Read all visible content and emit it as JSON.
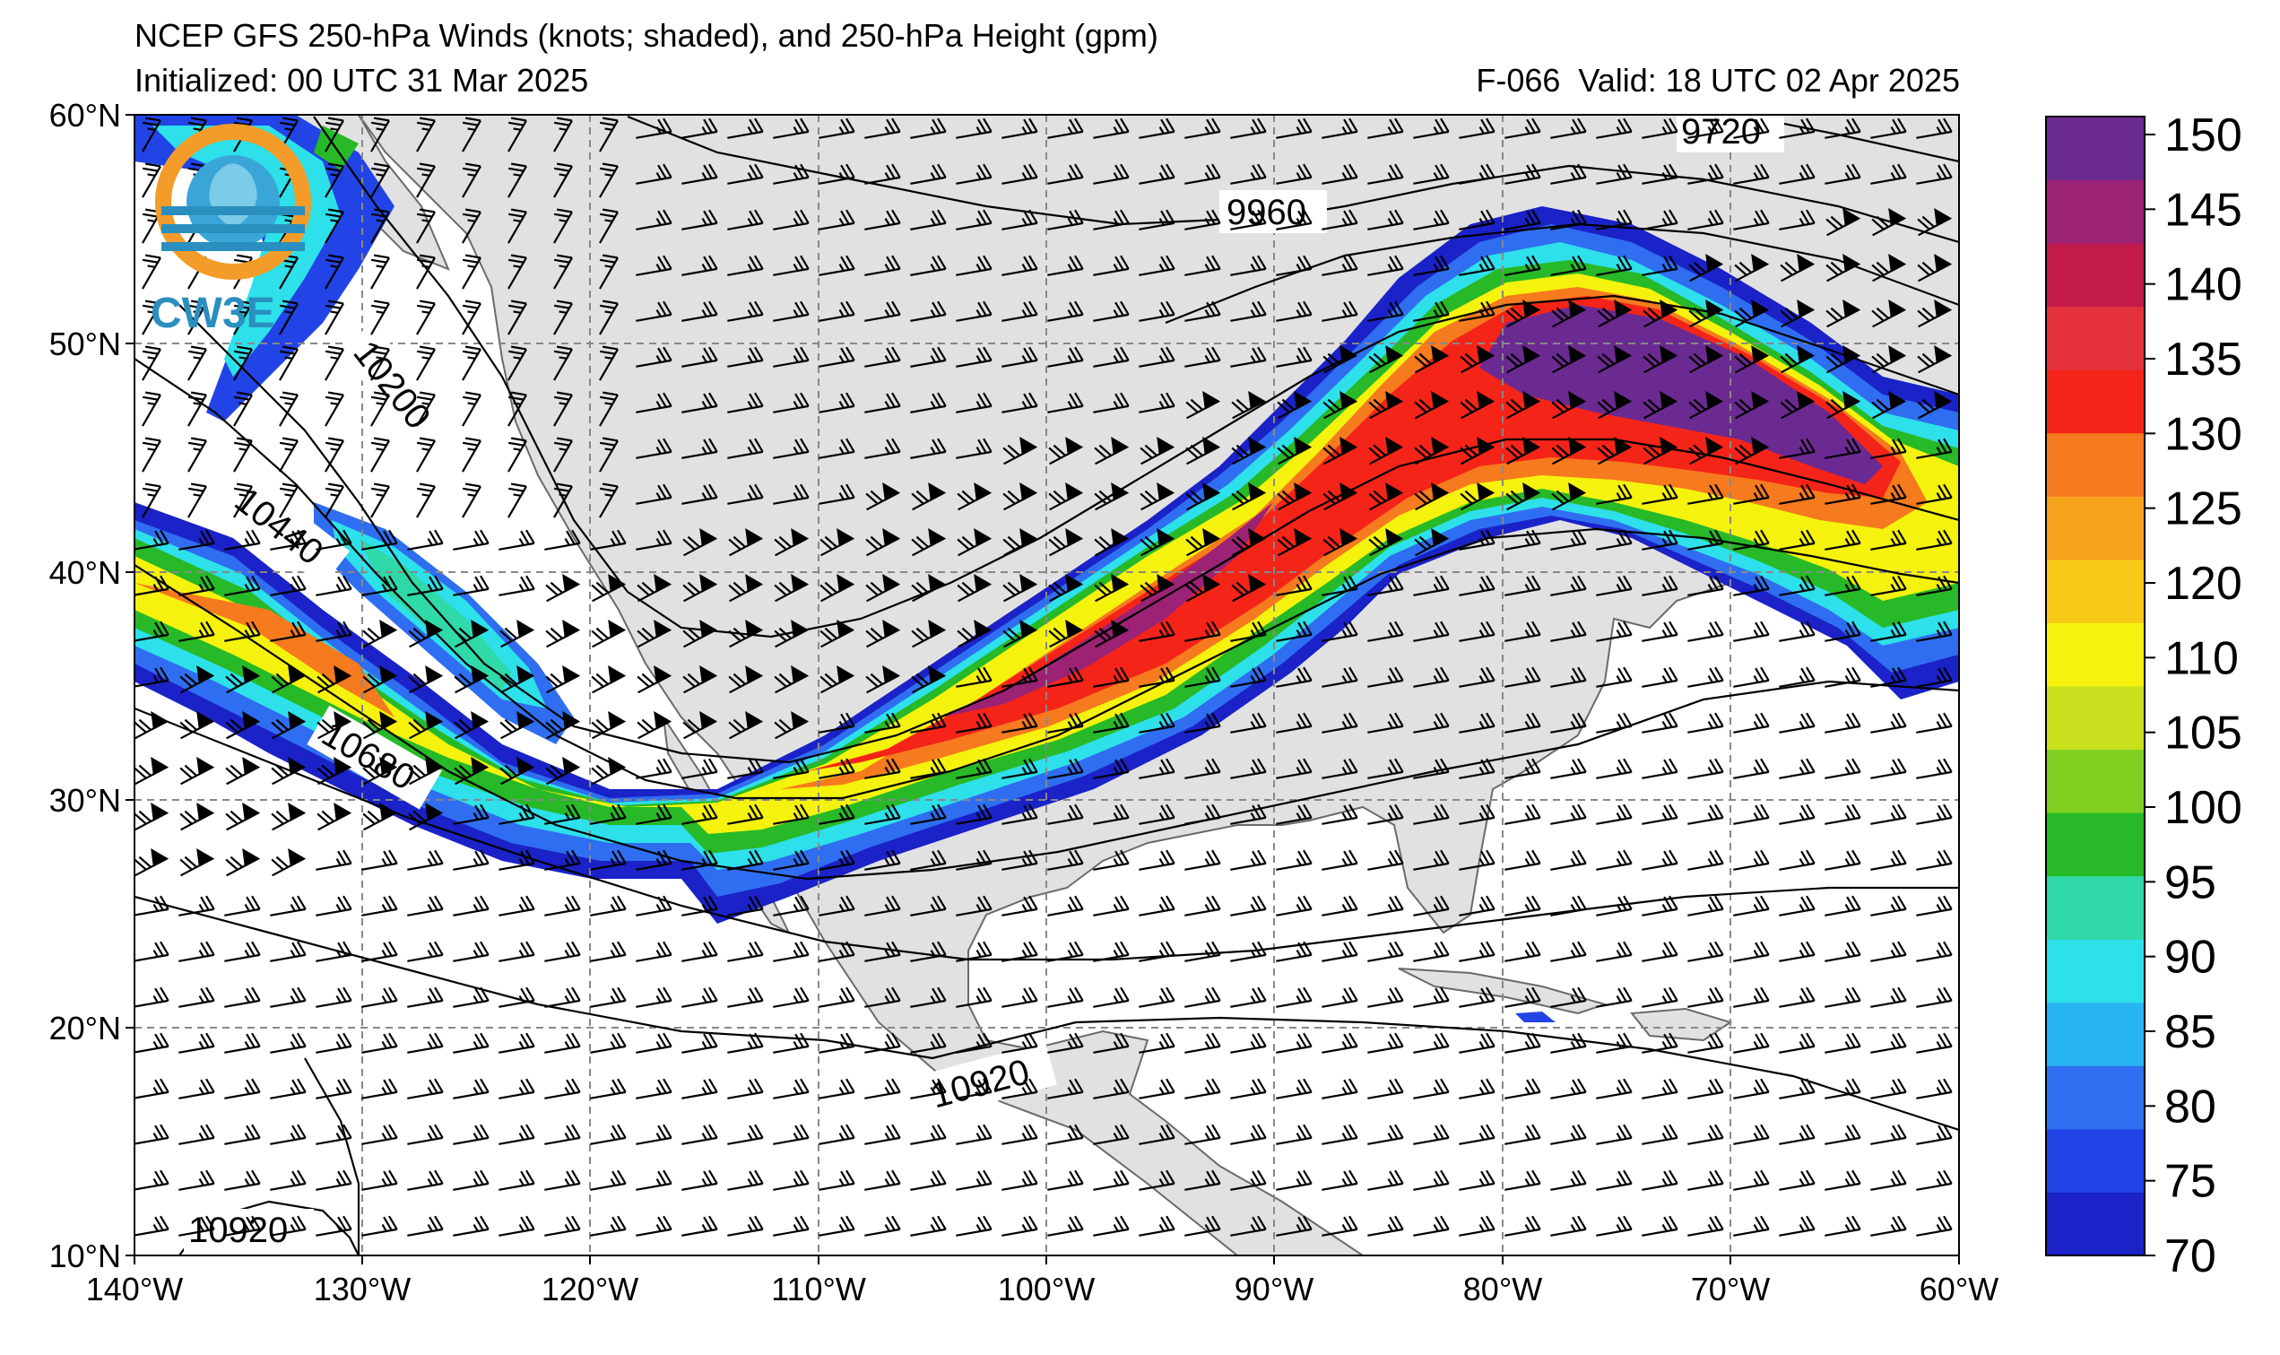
{
  "header": {
    "title": "NCEP GFS 250-hPa Winds (knots; shaded), and 250-hPa Height (gpm)",
    "initialized": "Initialized: 00 UTC 31 Mar 2025",
    "valid": "F-066  Valid: 18 UTC 02 Apr 2025"
  },
  "logo": {
    "text": "CW3E",
    "icon": "cw3e-logo-icon"
  },
  "axes": {
    "lat_labels": [
      "60°N",
      "50°N",
      "40°N",
      "30°N",
      "20°N",
      "10°N"
    ],
    "lon_labels": [
      "140°W",
      "130°W",
      "120°W",
      "110°W",
      "100°W",
      "90°W",
      "80°W",
      "70°W",
      "60°W"
    ],
    "lat_range": [
      10,
      60
    ],
    "lon_range": [
      -140,
      -60
    ]
  },
  "contour_labels": [
    "9720",
    "9960",
    "10200",
    "10440",
    "10680",
    "10920",
    "10920"
  ],
  "colorbar": {
    "ticks": [
      "70",
      "75",
      "80",
      "85",
      "90",
      "95",
      "100",
      "105",
      "110",
      "120",
      "125",
      "130",
      "135",
      "140",
      "145",
      "150"
    ],
    "colors": [
      "#1a22c8",
      "#2244e6",
      "#2f6ef0",
      "#27b4f2",
      "#2de0ea",
      "#2fd9a8",
      "#27b927",
      "#7fd021",
      "#c8e01e",
      "#f5f20d",
      "#f9c917",
      "#f7a31c",
      "#f67a1e",
      "#f52419",
      "#e4313c",
      "#c21b4b",
      "#9b2274",
      "#6b2a91"
    ]
  }
}
